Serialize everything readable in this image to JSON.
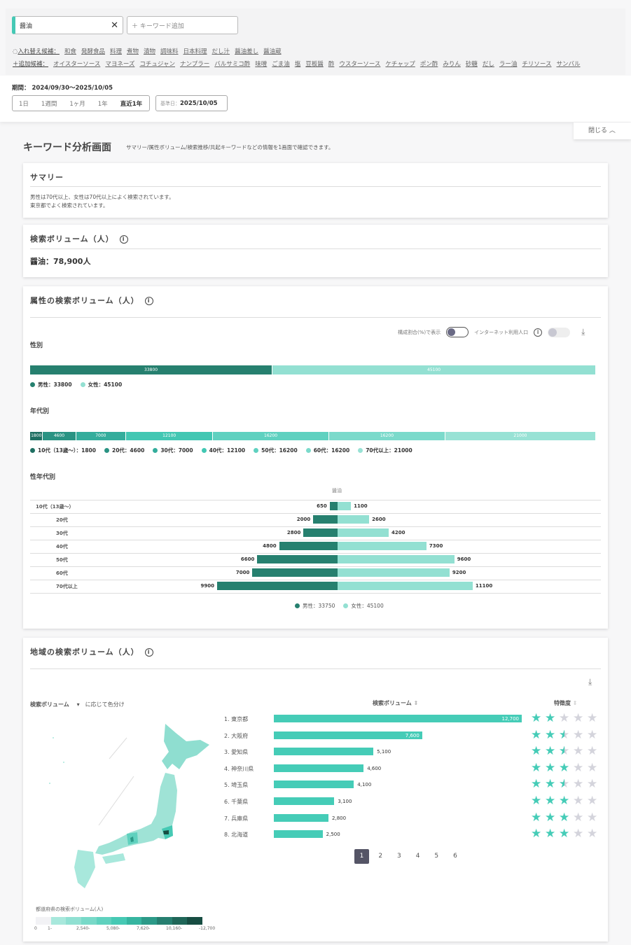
{
  "filter": {
    "keyword": "醤油",
    "add_placeholder": "＋ キーワード追加",
    "replace_label": "入れ替え候補：",
    "replace": [
      "和食",
      "発酵食品",
      "料理",
      "煮物",
      "漬物",
      "調味料",
      "日本料理",
      "だし汁",
      "醤油差し",
      "醤油蔵"
    ],
    "add_label": "＋追加候補：",
    "add": [
      "オイスターソース",
      "マヨネーズ",
      "コチュジャン",
      "ナンプラー",
      "バルサミコ酢",
      "味噌",
      "ごま油",
      "塩",
      "豆板醤",
      "酢",
      "ウスターソース",
      "ケチャップ",
      "ポン酢",
      "みりん",
      "砂糖",
      "だし",
      "ラー油",
      "チリソース",
      "サンバル"
    ]
  },
  "period": {
    "label": "期間：",
    "value": "2024/09/30〜2025/10/05",
    "ranges": [
      "1日",
      "1週間",
      "1ヶ月",
      "1年",
      "直近1年"
    ],
    "selected": "直近1年",
    "base_label": "基準日：",
    "base_date": "2025/10/05"
  },
  "close_label": "閉じる",
  "page": {
    "title": "キーワード分析画面",
    "subtitle": "サマリー/属性ボリューム/検索推移/共起キーワードなどの情報を1画面で確認できます。"
  },
  "summary": {
    "title": "サマリー",
    "lines": [
      "男性は70代以上、女性は70代以上によく検索されています。",
      "東京都でよく検索されています。"
    ]
  },
  "volume": {
    "title": "検索ボリューム（人）",
    "value": "醤油：78,900人"
  },
  "attr": {
    "title": "属性の検索ボリューム（人）",
    "toggle_ratio": "構成割合(%)で表示",
    "toggle_ratio_on": false,
    "toggle_internet": "インターネット利用人口",
    "toggle_internet_on": false,
    "gender": {
      "label": "性別",
      "values": [
        33800,
        45100
      ],
      "legend": [
        "男性：33800",
        "女性：45100"
      ],
      "colors": [
        "#26806f",
        "#93e0d2"
      ]
    },
    "age": {
      "label": "年代別",
      "values": [
        1800,
        4600,
        7000,
        12100,
        16200,
        16200,
        21000
      ],
      "legend": [
        "10代（13歳〜）：1800",
        "20代：4600",
        "30代：7000",
        "40代：12100",
        "50代：16200",
        "60代：16200",
        "70代以上：21000"
      ],
      "colors": [
        "#1f6f62",
        "#2a9383",
        "#34ad9c",
        "#42c7b3",
        "#5fd1c0",
        "#7bdacb",
        "#98e2d5"
      ]
    },
    "pyramid": {
      "label": "性年代別",
      "keyword": "醤油",
      "categories": [
        "10代（13歳〜）",
        "20代",
        "30代",
        "40代",
        "50代",
        "60代",
        "70代以上"
      ],
      "male": [
        650,
        2000,
        2800,
        4800,
        6600,
        7000,
        9900
      ],
      "female": [
        1100,
        2600,
        4200,
        7300,
        9600,
        9200,
        11100
      ],
      "legend": [
        "男性：33750",
        "女性：45100"
      ]
    }
  },
  "region": {
    "title": "地域の検索ボリューム（人）",
    "color_by": "検索ボリューム",
    "color_by_suffix": "に応じて色分け",
    "col_volume": "検索ボリューム",
    "col_feature": "特徴度",
    "ranking": [
      {
        "label": "1. 東京都",
        "value": 12700,
        "text": "12,700",
        "stars": 2
      },
      {
        "label": "2. 大阪府",
        "value": 7600,
        "text": "7,600",
        "stars": 2.5
      },
      {
        "label": "3. 愛知県",
        "value": 5100,
        "text": "5,100",
        "stars": 2.5
      },
      {
        "label": "4. 神奈川県",
        "value": 4600,
        "text": "4,600",
        "stars": 3
      },
      {
        "label": "5. 埼玉県",
        "value": 4100,
        "text": "4,100",
        "stars": 2.5
      },
      {
        "label": "6. 千葉県",
        "value": 3100,
        "text": "3,100",
        "stars": 3
      },
      {
        "label": "7. 兵庫県",
        "value": 2800,
        "text": "2,800",
        "stars": 3
      },
      {
        "label": "8. 北海道",
        "value": 2500,
        "text": "2,500",
        "stars": 3
      }
    ],
    "pages": [
      "1",
      "2",
      "3",
      "4",
      "5",
      "6"
    ],
    "current_page": "1",
    "legend_title": "都道府県の検索ボリューム(人)",
    "legend_ticks": [
      "0",
      "1-",
      "2,540-",
      "5,080-",
      "7,620-",
      "10,160-",
      "-12,700"
    ],
    "legend_colors": [
      "#f2f2f5",
      "#a8e8dc",
      "#90e0d2",
      "#78d9c8",
      "#5fd1be",
      "#46c9b4",
      "#36b5a0",
      "#2c9a88",
      "#267f70",
      "#1f6658",
      "#174d42"
    ]
  }
}
